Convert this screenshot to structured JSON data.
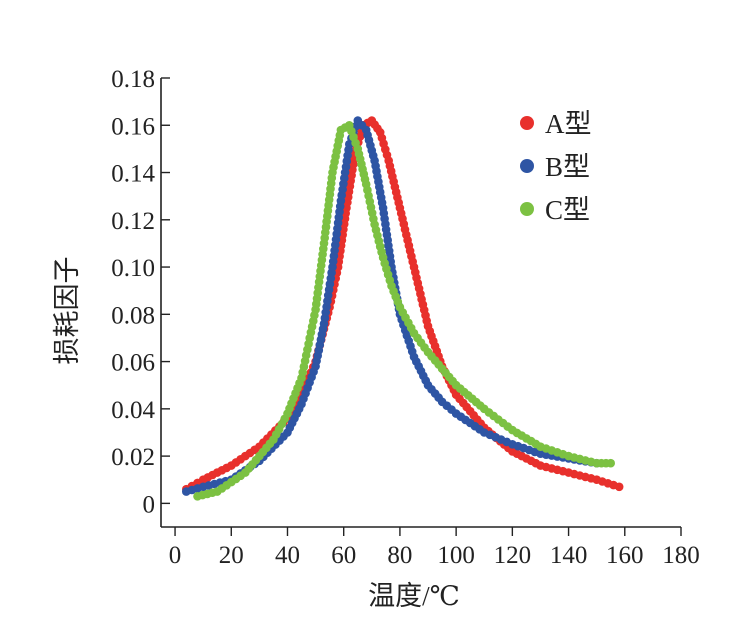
{
  "chart_data": {
    "type": "scatter",
    "xlabel": "温度/℃",
    "ylabel": "损耗因子",
    "xlim": [
      -5,
      180
    ],
    "ylim": [
      -0.01,
      0.18
    ],
    "xticks": [
      "0",
      "20",
      "40",
      "60",
      "80",
      "100",
      "120",
      "140",
      "160",
      "180"
    ],
    "yticks": [
      "0",
      "0.02",
      "0.04",
      "0.06",
      "0.08",
      "0.10",
      "0.12",
      "0.14",
      "0.16",
      "0.18"
    ],
    "legend_position": "top-right",
    "series": [
      {
        "name": "A型",
        "color": "#e8302c",
        "x": [
          4,
          10,
          20,
          30,
          40,
          45,
          50,
          55,
          58,
          61,
          64,
          67,
          70,
          73,
          76,
          80,
          85,
          90,
          95,
          100,
          110,
          120,
          130,
          140,
          150,
          158
        ],
        "y": [
          0.006,
          0.01,
          0.016,
          0.024,
          0.036,
          0.046,
          0.06,
          0.083,
          0.1,
          0.125,
          0.148,
          0.16,
          0.162,
          0.157,
          0.145,
          0.125,
          0.1,
          0.075,
          0.058,
          0.046,
          0.032,
          0.022,
          0.016,
          0.013,
          0.01,
          0.007
        ]
      },
      {
        "name": "B型",
        "color": "#2e55a4",
        "x": [
          4,
          10,
          20,
          30,
          40,
          45,
          50,
          53,
          56,
          59,
          62,
          65,
          68,
          71,
          74,
          77,
          80,
          85,
          90,
          95,
          100,
          110,
          120,
          130,
          140,
          150
        ],
        "y": [
          0.005,
          0.007,
          0.01,
          0.018,
          0.03,
          0.042,
          0.058,
          0.076,
          0.1,
          0.128,
          0.152,
          0.162,
          0.158,
          0.145,
          0.125,
          0.1,
          0.08,
          0.062,
          0.05,
          0.043,
          0.038,
          0.03,
          0.025,
          0.021,
          0.019,
          0.017
        ]
      },
      {
        "name": "C型",
        "color": "#7cc142",
        "x": [
          8,
          15,
          25,
          35,
          40,
          45,
          50,
          53,
          56,
          59,
          62,
          65,
          68,
          71,
          74,
          77,
          80,
          85,
          90,
          95,
          100,
          110,
          120,
          130,
          140,
          150,
          155
        ],
        "y": [
          0.003,
          0.005,
          0.013,
          0.027,
          0.038,
          0.053,
          0.082,
          0.11,
          0.14,
          0.158,
          0.16,
          0.15,
          0.135,
          0.118,
          0.104,
          0.092,
          0.083,
          0.072,
          0.064,
          0.057,
          0.05,
          0.04,
          0.031,
          0.024,
          0.02,
          0.017,
          0.017
        ]
      }
    ]
  }
}
